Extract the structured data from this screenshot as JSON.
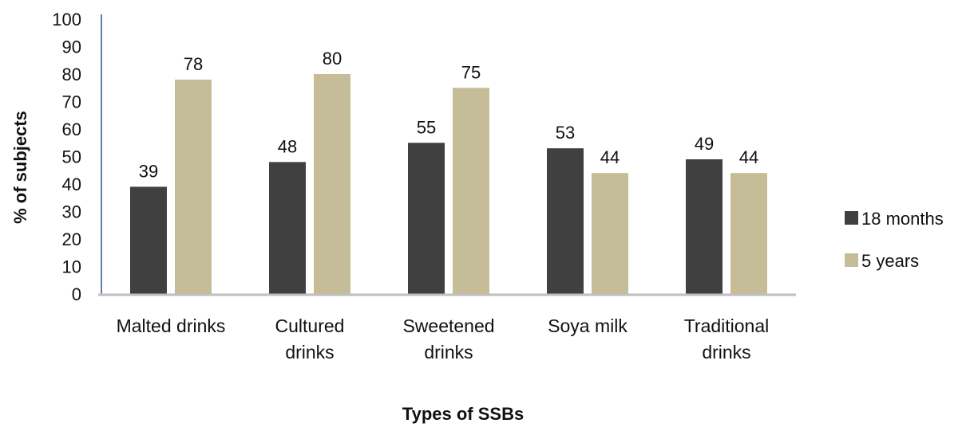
{
  "chart_data": {
    "type": "bar",
    "xlabel": "Types of SSBs",
    "ylabel": "% of subjects",
    "ylim": [
      0,
      100
    ],
    "yticks": [
      0,
      10,
      20,
      30,
      40,
      50,
      60,
      70,
      80,
      90,
      100
    ],
    "categories": [
      [
        "Malted drinks"
      ],
      [
        "Cultured",
        "drinks"
      ],
      [
        "Sweetened",
        "drinks"
      ],
      [
        "Soya milk"
      ],
      [
        "Traditional",
        "drinks"
      ]
    ],
    "series": [
      {
        "name": "18 months",
        "color": "#404040",
        "values": [
          39,
          48,
          55,
          53,
          49
        ],
        "labels": [
          "39",
          "48",
          "55",
          "53",
          "49"
        ]
      },
      {
        "name": "5 years",
        "color": "#c4bd97",
        "values": [
          78,
          80,
          75,
          44,
          44
        ],
        "labels": [
          "78",
          "80",
          "75",
          "44",
          "44"
        ]
      }
    ],
    "legend": "right",
    "grid": false
  }
}
